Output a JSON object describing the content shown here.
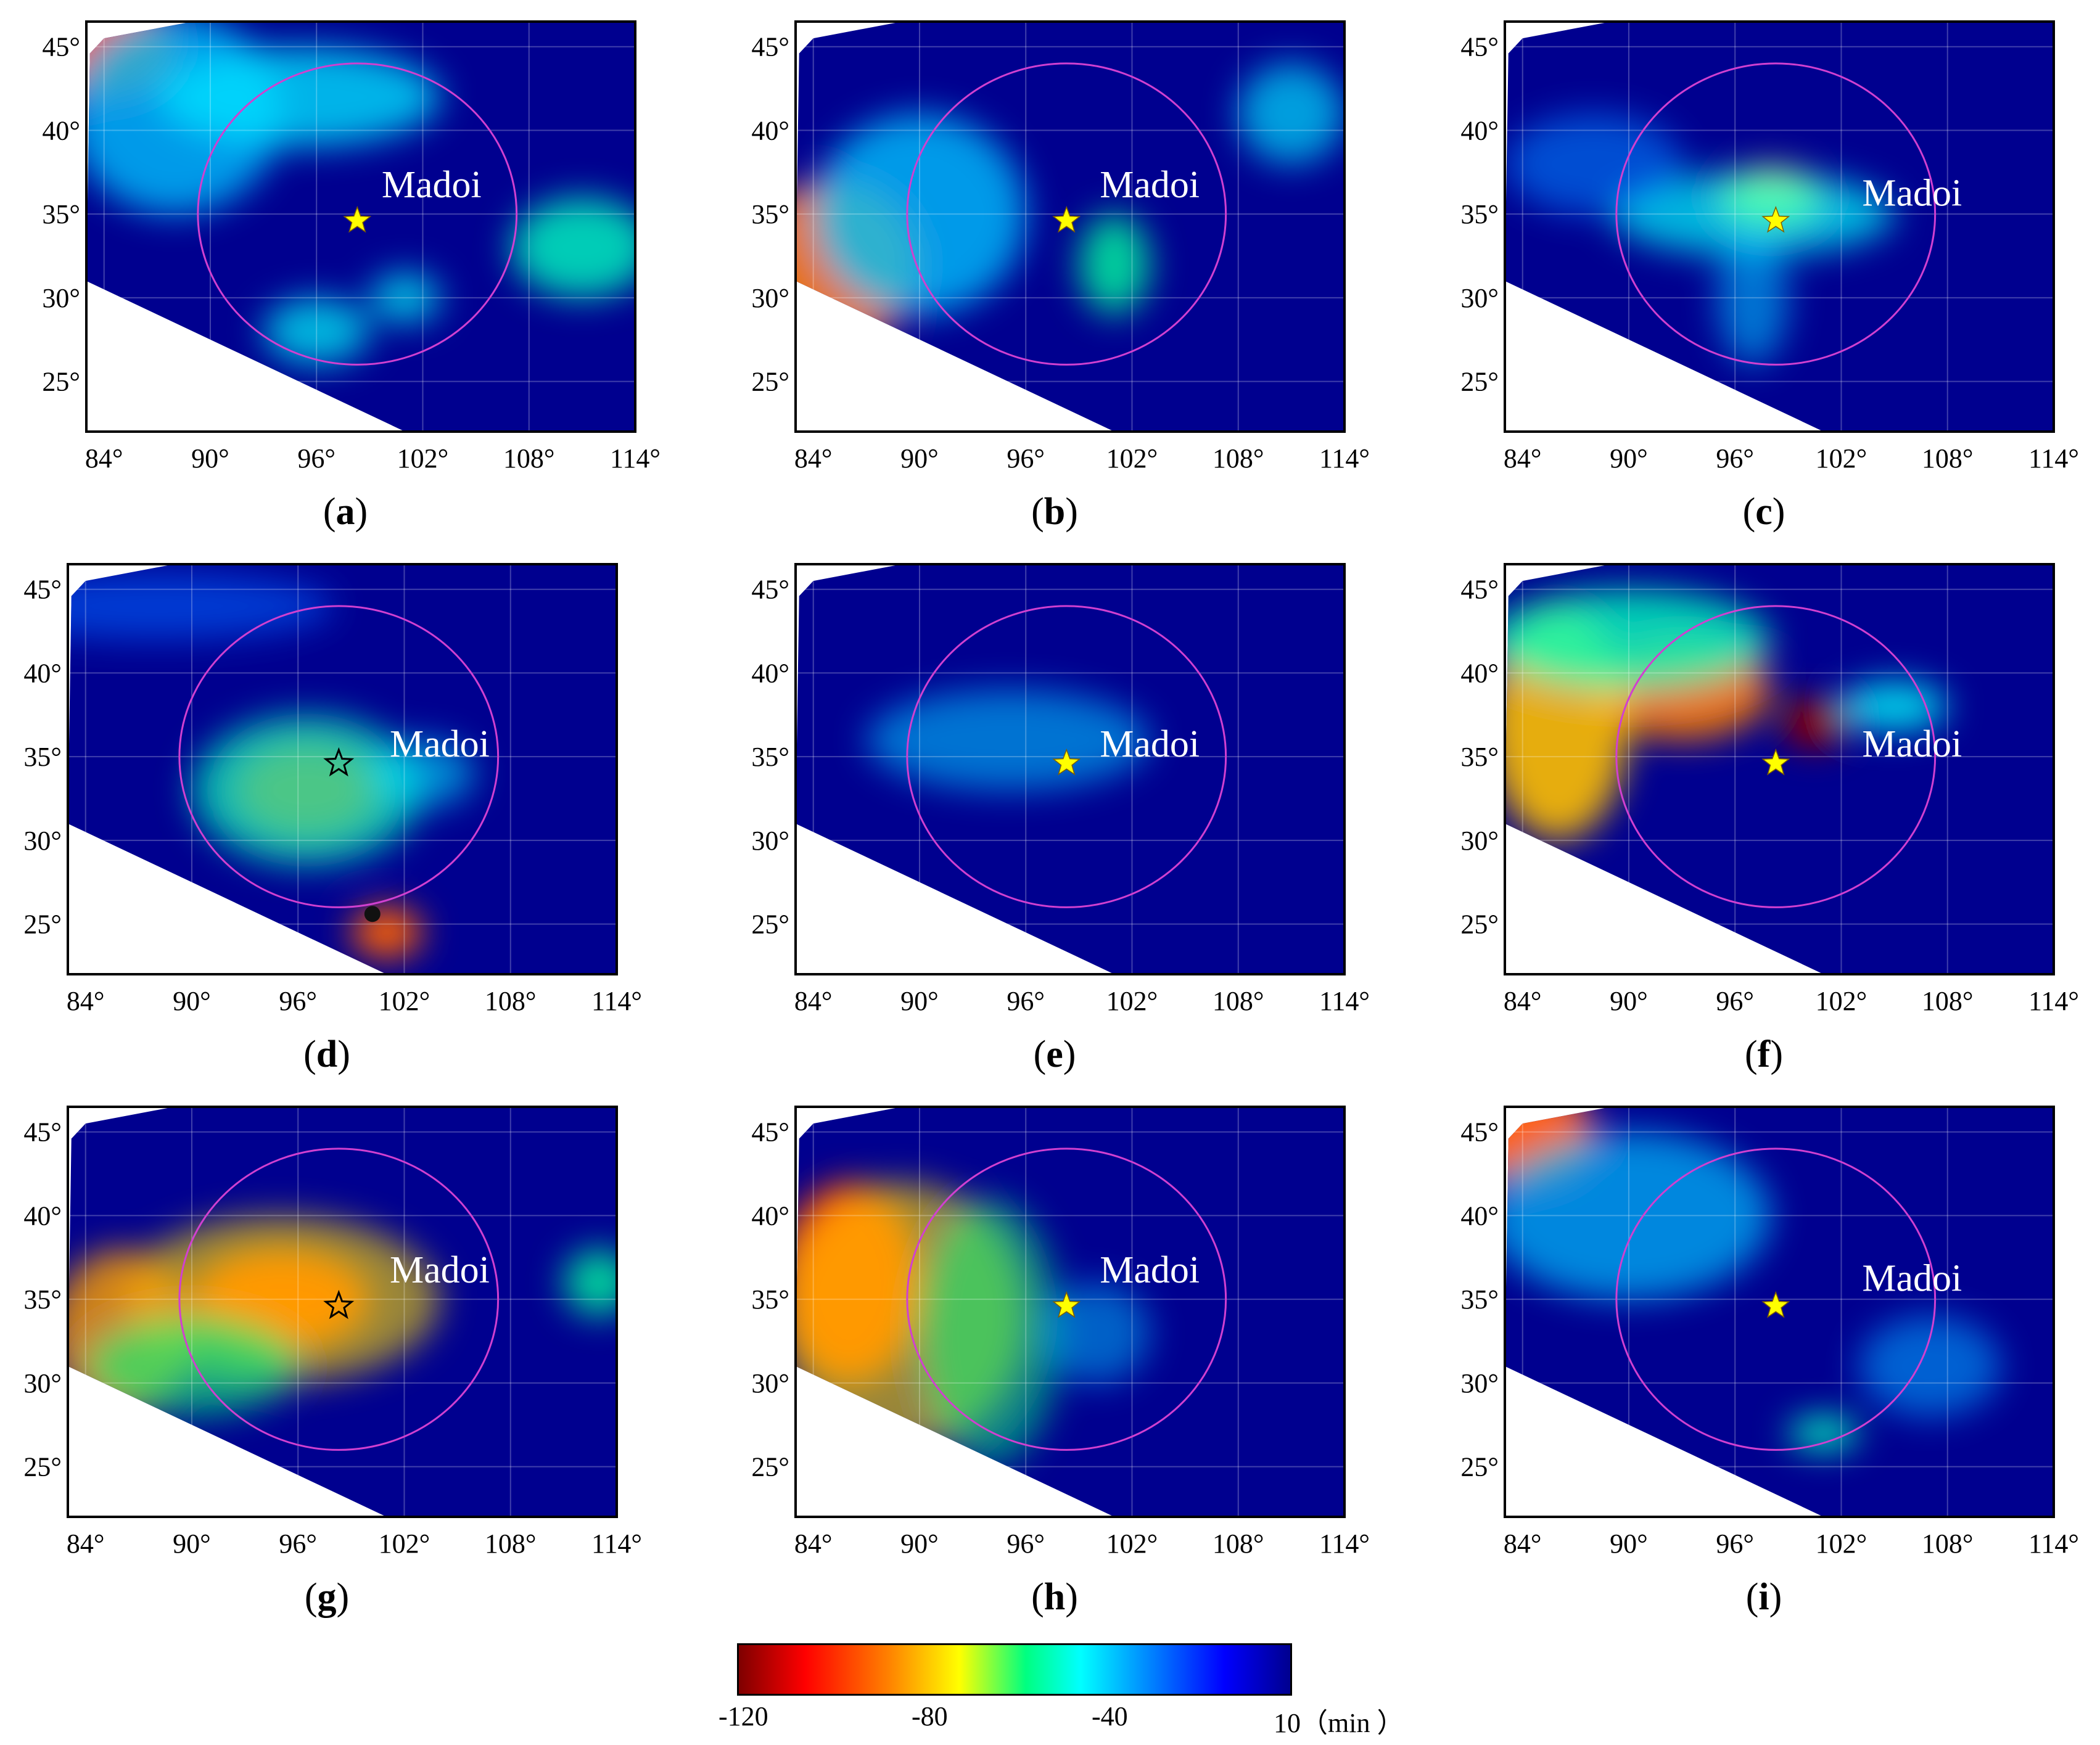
{
  "panels": [
    {
      "id": "a",
      "label": "a",
      "place": "Madoi"
    },
    {
      "id": "b",
      "label": "b",
      "place": "Madoi"
    },
    {
      "id": "c",
      "label": "c",
      "place": "Madoi"
    },
    {
      "id": "d",
      "label": "d",
      "place": "Madoi"
    },
    {
      "id": "e",
      "label": "e",
      "place": "Madoi"
    },
    {
      "id": "f",
      "label": "f",
      "place": "Madoi"
    },
    {
      "id": "g",
      "label": "g",
      "place": "Madoi"
    },
    {
      "id": "h",
      "label": "h",
      "place": "Madoi"
    },
    {
      "id": "i",
      "label": "i",
      "place": "Madoi"
    }
  ],
  "axes": {
    "lon_ticks": [
      "84°",
      "90°",
      "96°",
      "102°",
      "108°",
      "114°"
    ],
    "lat_ticks": [
      "45°",
      "40°",
      "35°",
      "30°",
      "25°"
    ],
    "lon_range": [
      83,
      114
    ],
    "lat_range": [
      22,
      46.5
    ]
  },
  "epicenter": {
    "lon": 98.3,
    "lat": 34.6,
    "name": "Madoi"
  },
  "colorbar": {
    "ticks": [
      "-120",
      "-80",
      "-40",
      "10"
    ],
    "unit": "（min ）",
    "min": -120,
    "max": 10
  },
  "colors": {
    "background": "#00008f",
    "circle": "#d040d0",
    "star": "#ffff00",
    "label_text": "#ffffff"
  }
}
